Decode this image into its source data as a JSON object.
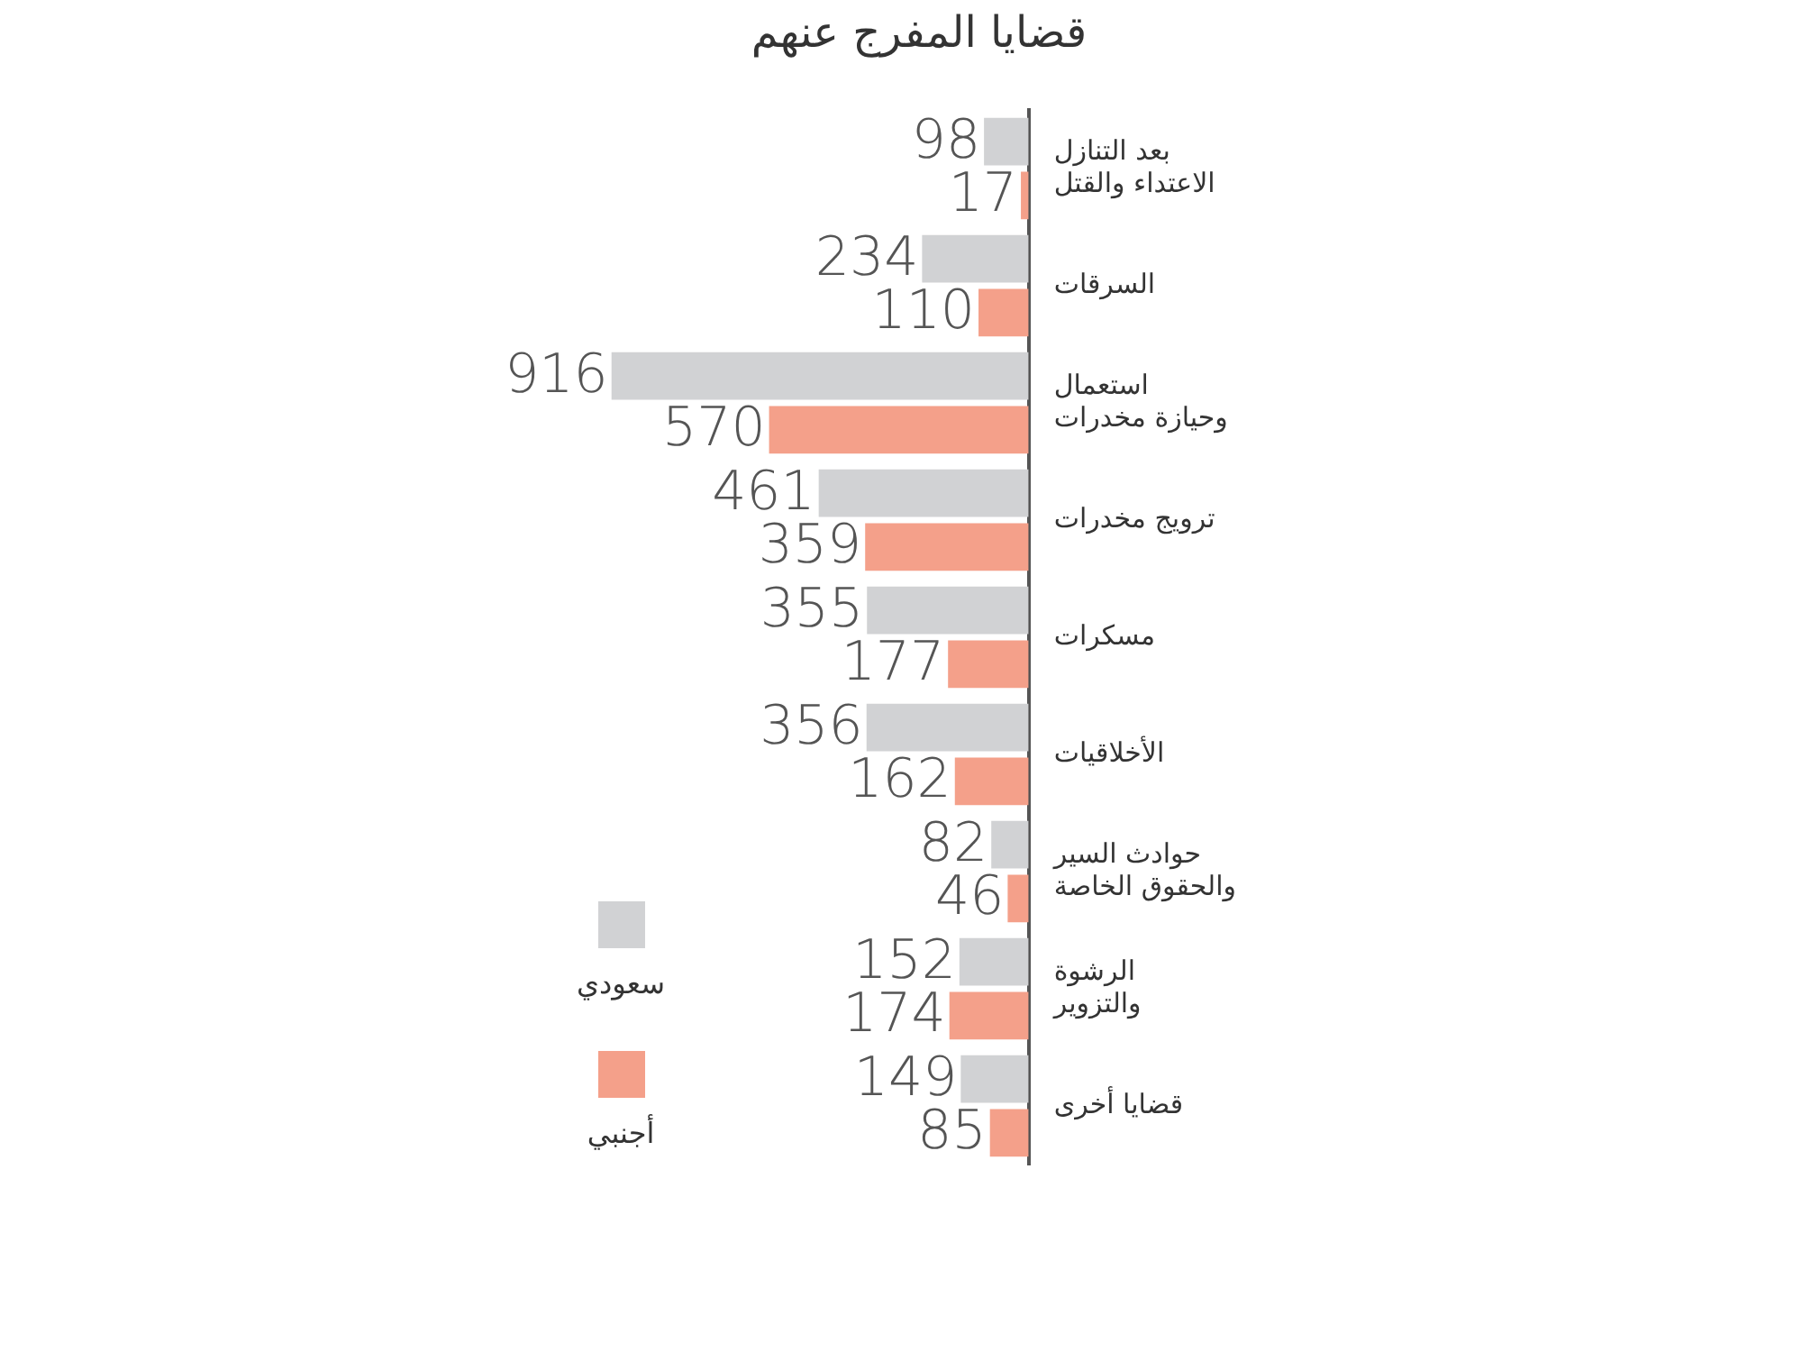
{
  "chart_data": {
    "type": "bar",
    "orientation": "horizontal",
    "title": "قضايا المفرج عنهم",
    "categories": [
      "بعد التنازل\nالاعتداء والقتل",
      "السرقات",
      "استعمال\nوحيازة مخدرات",
      "ترويج مخدرات",
      "مسكرات",
      "الأخلاقيات",
      "حوادث السير\nوالحقوق الخاصة",
      "الرشوة\nوالتزوير",
      "قضايا أخرى"
    ],
    "series": [
      {
        "name": "سعودي",
        "color": "#d1d2d4",
        "values": [
          98,
          234,
          916,
          461,
          355,
          356,
          82,
          152,
          149
        ]
      },
      {
        "name": "أجنبي",
        "color": "#f4a08a",
        "values": [
          17,
          110,
          570,
          359,
          177,
          162,
          46,
          174,
          85
        ]
      }
    ],
    "data_labels": true,
    "grid": false,
    "legend": "bottom left",
    "tick_labels": "y"
  }
}
